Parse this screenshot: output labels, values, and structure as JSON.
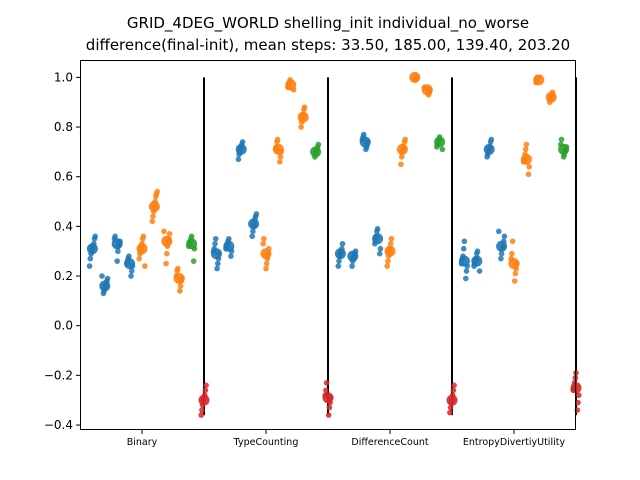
{
  "chart_data": {
    "type": "scatter",
    "title": "GRID_4DEG_WORLD shelling_init individual_no_worse",
    "subtitle": "difference(final-init), mean steps: 33.50, 185.00, 139.40, 203.20",
    "categories": [
      "Binary",
      "TypeCounting",
      "DifferenceCount",
      "EntropyDivertiyUtility"
    ],
    "xlabel": "",
    "ylabel": "",
    "ylim": [
      -0.42,
      1.07
    ],
    "yticks": [
      -0.4,
      -0.2,
      0.0,
      0.2,
      0.4,
      0.6,
      0.8,
      1.0
    ],
    "ytick_labels": [
      "−0.4",
      "−0.2",
      "0.0",
      "0.2",
      "0.4",
      "0.6",
      "0.8",
      "1.0"
    ],
    "separator_range": [
      -0.36,
      1.0
    ],
    "grid": false,
    "colors": {
      "blue": "#1f77b4",
      "orange": "#ff7f0e",
      "green": "#2ca02c",
      "red": "#d62728",
      "separator": "#000000"
    },
    "groups": [
      {
        "category": "Binary",
        "clusters": [
          {
            "color": "blue",
            "offset": -0.4,
            "mean": 0.31,
            "points": [
              0.24,
              0.27,
              0.29,
              0.3,
              0.31,
              0.32,
              0.33,
              0.35,
              0.36
            ]
          },
          {
            "color": "blue",
            "offset": -0.3,
            "mean": 0.16,
            "points": [
              0.13,
              0.14,
              0.15,
              0.16,
              0.17,
              0.18,
              0.19,
              0.2
            ]
          },
          {
            "color": "blue",
            "offset": -0.2,
            "mean": 0.33,
            "points": [
              0.26,
              0.3,
              0.32,
              0.33,
              0.34,
              0.35,
              0.36
            ]
          },
          {
            "color": "blue",
            "offset": -0.1,
            "mean": 0.25,
            "points": [
              0.2,
              0.22,
              0.24,
              0.25,
              0.26,
              0.27,
              0.28
            ]
          },
          {
            "color": "orange",
            "offset": 0.0,
            "mean": 0.31,
            "points": [
              0.24,
              0.27,
              0.29,
              0.3,
              0.32,
              0.33,
              0.35,
              0.36
            ]
          },
          {
            "color": "orange",
            "offset": 0.1,
            "mean": 0.48,
            "points": [
              0.42,
              0.44,
              0.46,
              0.48,
              0.5,
              0.52,
              0.53,
              0.54
            ]
          },
          {
            "color": "orange",
            "offset": 0.2,
            "mean": 0.34,
            "points": [
              0.25,
              0.29,
              0.32,
              0.34,
              0.35,
              0.37,
              0.38
            ]
          },
          {
            "color": "orange",
            "offset": 0.3,
            "mean": 0.19,
            "points": [
              0.14,
              0.16,
              0.18,
              0.19,
              0.2,
              0.22,
              0.23
            ]
          },
          {
            "color": "green",
            "offset": 0.4,
            "mean": 0.33,
            "points": [
              0.26,
              0.31,
              0.32,
              0.33,
              0.34,
              0.35,
              0.36
            ]
          },
          {
            "color": "red",
            "offset": 0.5,
            "mean": -0.3,
            "points": [
              -0.36,
              -0.34,
              -0.32,
              -0.3,
              -0.29,
              -0.28,
              -0.26,
              -0.24
            ]
          }
        ]
      },
      {
        "category": "TypeCounting",
        "clusters": [
          {
            "color": "blue",
            "offset": -0.4,
            "mean": 0.29,
            "points": [
              0.23,
              0.25,
              0.27,
              0.29,
              0.3,
              0.31,
              0.33,
              0.35
            ]
          },
          {
            "color": "blue",
            "offset": -0.3,
            "mean": 0.32,
            "points": [
              0.28,
              0.3,
              0.31,
              0.32,
              0.33,
              0.34,
              0.35
            ]
          },
          {
            "color": "blue",
            "offset": -0.2,
            "mean": 0.71,
            "points": [
              0.67,
              0.69,
              0.7,
              0.71,
              0.72,
              0.73,
              0.74
            ]
          },
          {
            "color": "blue",
            "offset": -0.1,
            "mean": 0.41,
            "points": [
              0.36,
              0.38,
              0.4,
              0.41,
              0.43,
              0.44,
              0.45
            ]
          },
          {
            "color": "orange",
            "offset": 0.0,
            "mean": 0.29,
            "points": [
              0.23,
              0.25,
              0.27,
              0.29,
              0.31,
              0.33,
              0.35
            ]
          },
          {
            "color": "orange",
            "offset": 0.1,
            "mean": 0.71,
            "points": [
              0.66,
              0.68,
              0.7,
              0.71,
              0.72,
              0.74,
              0.75
            ]
          },
          {
            "color": "orange",
            "offset": 0.2,
            "mean": 0.97,
            "points": [
              0.95,
              0.96,
              0.97,
              0.98,
              0.99
            ]
          },
          {
            "color": "orange",
            "offset": 0.3,
            "mean": 0.84,
            "points": [
              0.8,
              0.82,
              0.84,
              0.85,
              0.87,
              0.88
            ]
          },
          {
            "color": "green",
            "offset": 0.4,
            "mean": 0.7,
            "points": [
              0.68,
              0.69,
              0.7,
              0.71,
              0.72,
              0.73
            ]
          },
          {
            "color": "red",
            "offset": 0.5,
            "mean": -0.29,
            "points": [
              -0.36,
              -0.33,
              -0.31,
              -0.29,
              -0.28,
              -0.26,
              -0.23
            ]
          }
        ]
      },
      {
        "category": "DifferenceCount",
        "clusters": [
          {
            "color": "blue",
            "offset": -0.4,
            "mean": 0.29,
            "points": [
              0.24,
              0.26,
              0.28,
              0.29,
              0.3,
              0.31,
              0.33
            ]
          },
          {
            "color": "blue",
            "offset": -0.3,
            "mean": 0.28,
            "points": [
              0.24,
              0.26,
              0.27,
              0.28,
              0.29,
              0.3
            ]
          },
          {
            "color": "blue",
            "offset": -0.2,
            "mean": 0.74,
            "points": [
              0.71,
              0.72,
              0.73,
              0.74,
              0.75,
              0.76,
              0.77
            ]
          },
          {
            "color": "blue",
            "offset": -0.1,
            "mean": 0.35,
            "points": [
              0.29,
              0.31,
              0.33,
              0.35,
              0.36,
              0.38,
              0.39
            ]
          },
          {
            "color": "orange",
            "offset": 0.0,
            "mean": 0.3,
            "points": [
              0.24,
              0.26,
              0.28,
              0.3,
              0.31,
              0.33,
              0.35
            ]
          },
          {
            "color": "orange",
            "offset": 0.1,
            "mean": 0.71,
            "points": [
              0.65,
              0.68,
              0.7,
              0.71,
              0.72,
              0.74,
              0.75
            ]
          },
          {
            "color": "orange",
            "offset": 0.2,
            "mean": 1.0,
            "points": [
              0.99,
              1.0,
              1.0,
              1.0
            ]
          },
          {
            "color": "orange",
            "offset": 0.3,
            "mean": 0.95,
            "points": [
              0.93,
              0.94,
              0.95,
              0.96
            ]
          },
          {
            "color": "green",
            "offset": 0.4,
            "mean": 0.74,
            "points": [
              0.71,
              0.72,
              0.73,
              0.74,
              0.75,
              0.76
            ]
          },
          {
            "color": "red",
            "offset": 0.5,
            "mean": -0.3,
            "points": [
              -0.35,
              -0.33,
              -0.31,
              -0.3,
              -0.28,
              -0.26,
              -0.24
            ]
          }
        ]
      },
      {
        "category": "EntropyDivertiyUtility",
        "clusters": [
          {
            "color": "blue",
            "offset": -0.4,
            "mean": 0.26,
            "points": [
              0.19,
              0.22,
              0.24,
              0.25,
              0.27,
              0.28,
              0.31,
              0.34
            ]
          },
          {
            "color": "blue",
            "offset": -0.3,
            "mean": 0.26,
            "points": [
              0.22,
              0.24,
              0.25,
              0.26,
              0.27,
              0.29,
              0.3
            ]
          },
          {
            "color": "blue",
            "offset": -0.2,
            "mean": 0.71,
            "points": [
              0.68,
              0.69,
              0.7,
              0.71,
              0.72,
              0.74,
              0.75
            ]
          },
          {
            "color": "blue",
            "offset": -0.1,
            "mean": 0.32,
            "points": [
              0.27,
              0.29,
              0.31,
              0.32,
              0.34,
              0.36,
              0.38
            ]
          },
          {
            "color": "orange",
            "offset": 0.0,
            "mean": 0.25,
            "points": [
              0.18,
              0.21,
              0.23,
              0.25,
              0.27,
              0.29,
              0.34
            ]
          },
          {
            "color": "orange",
            "offset": 0.1,
            "mean": 0.67,
            "points": [
              0.61,
              0.64,
              0.66,
              0.67,
              0.69,
              0.71,
              0.73
            ]
          },
          {
            "color": "orange",
            "offset": 0.2,
            "mean": 0.99,
            "points": [
              0.98,
              0.99,
              1.0,
              1.0
            ]
          },
          {
            "color": "orange",
            "offset": 0.3,
            "mean": 0.92,
            "points": [
              0.9,
              0.91,
              0.92,
              0.93,
              0.94
            ]
          },
          {
            "color": "green",
            "offset": 0.4,
            "mean": 0.71,
            "points": [
              0.68,
              0.69,
              0.7,
              0.71,
              0.72,
              0.73,
              0.75
            ]
          },
          {
            "color": "red",
            "offset": 0.5,
            "mean": -0.25,
            "points": [
              -0.34,
              -0.31,
              -0.28,
              -0.26,
              -0.25,
              -0.23,
              -0.21,
              -0.19
            ]
          }
        ]
      }
    ]
  }
}
